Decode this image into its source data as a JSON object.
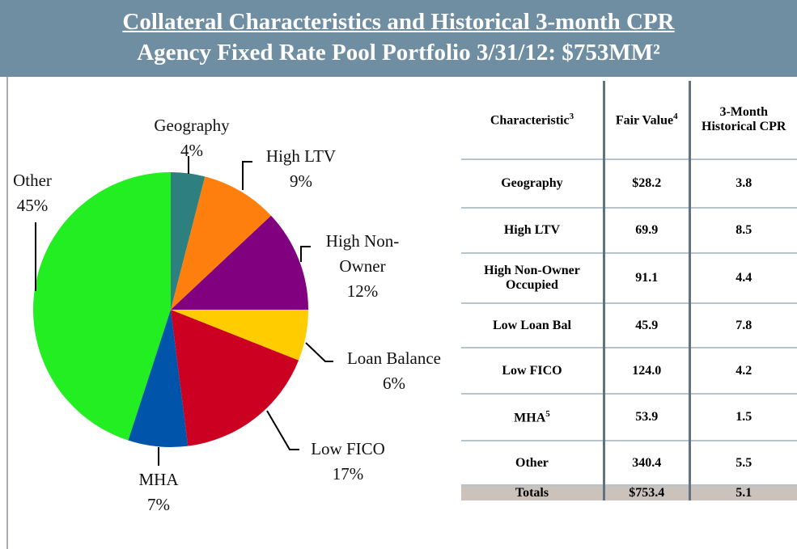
{
  "header": {
    "title": "Collateral Characteristics and Historical 3-month CPR",
    "subtitle": "Agency Fixed Rate Pool Portfolio 3/31/12: $753MM²"
  },
  "chart_data": {
    "type": "pie",
    "categories": [
      "Geography",
      "High LTV",
      "High Non-Owner",
      "Loan Balance",
      "Low FICO",
      "MHA",
      "Other"
    ],
    "values": [
      4,
      9,
      12,
      6,
      17,
      7,
      45
    ],
    "value_labels": [
      "4%",
      "9%",
      "12%",
      "6%",
      "17%",
      "7%",
      "45%"
    ],
    "colors": [
      "#2e8080",
      "#ff7f0e",
      "#800080",
      "#ffcc00",
      "#cc0020",
      "#0055aa",
      "#22ee22"
    ]
  },
  "table": {
    "header": [
      {
        "text": "Characteristic",
        "sup": "3"
      },
      {
        "text": "Fair Value",
        "sup": "4"
      },
      {
        "text": "3-Month Historical CPR"
      }
    ],
    "rows": [
      [
        {
          "text": "Geography"
        },
        "$28.2",
        "3.8"
      ],
      [
        {
          "text": "High LTV"
        },
        "69.9",
        "8.5"
      ],
      [
        {
          "text": "High Non-Owner Occupied"
        },
        "91.1",
        "4.4"
      ],
      [
        {
          "text": "Low Loan Bal"
        },
        "45.9",
        "7.8"
      ],
      [
        {
          "text": "Low FICO"
        },
        "124.0",
        "4.2"
      ],
      [
        {
          "text": "MHA",
          "sup": "5"
        },
        "53.9",
        "1.5"
      ],
      [
        {
          "text": "Other"
        },
        "340.4",
        "5.5"
      ]
    ],
    "totals": [
      "Totals",
      "$753.4",
      "5.1"
    ]
  }
}
